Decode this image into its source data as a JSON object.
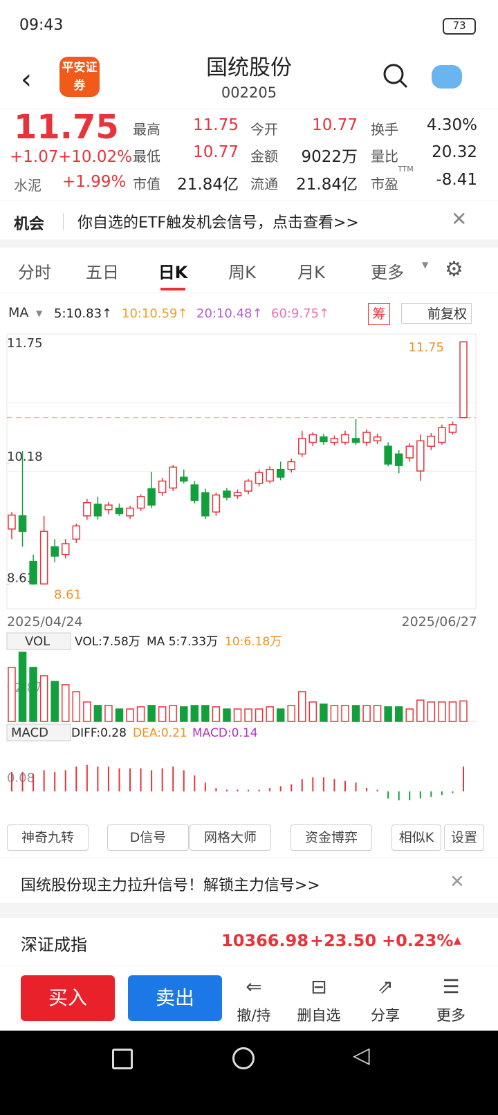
{
  "status": {
    "time": "09:43",
    "battery": "73"
  },
  "header": {
    "logo": "平安证券",
    "title": "国统股份",
    "code": "002205"
  },
  "quote": {
    "price": "11.75",
    "change": "+1.07",
    "pct": "+10.02%",
    "sector": "水泥",
    "sector_pct": "+1.99%",
    "stats": [
      [
        "最高",
        "11.75"
      ],
      [
        "今开",
        "10.77"
      ],
      [
        "换手",
        "4.30%"
      ],
      [
        "最低",
        "10.77"
      ],
      [
        "金额",
        "9022万"
      ],
      [
        "量比",
        "20.32"
      ],
      [
        "市值",
        "21.84亿"
      ],
      [
        "流通",
        "21.84亿"
      ],
      [
        "市盈",
        "-8.41"
      ]
    ],
    "ttm": "TTM"
  },
  "banner": {
    "tag": "机会",
    "text": "你自选的ETF触发机会信号，点击查看>>"
  },
  "tabs": [
    "分时",
    "五日",
    "日K",
    "周K",
    "月K",
    "更多"
  ],
  "ma_legend": {
    "label": "MA",
    "items": [
      {
        "text": "5:10.83↑",
        "color": "#222222"
      },
      {
        "text": "10:10.59↑",
        "color": "#f0a020"
      },
      {
        "text": "20:10.48↑",
        "color": "#b060d0"
      },
      {
        "text": "60:9.75↑",
        "color": "#f070b0"
      }
    ],
    "chip": "筹",
    "adjust": "前复权"
  },
  "chart_data": {
    "type": "candlestick",
    "ylim": [
      8.3,
      11.85
    ],
    "yticks": [
      {
        "value": 11.75,
        "label": "11.75"
      },
      {
        "value": 10.18,
        "label": "10.18"
      },
      {
        "value": 8.61,
        "label": "8.61"
      }
    ],
    "ref_line": 10.77,
    "high_label": "11.75",
    "low_label": "8.61",
    "up_color": "#e8333a",
    "down_color": "#12a03c",
    "candles": [
      {
        "open": 9.33,
        "high": 9.55,
        "low": 9.2,
        "close": 9.51
      },
      {
        "open": 9.5,
        "high": 10.34,
        "low": 9.1,
        "close": 9.3
      },
      {
        "open": 8.91,
        "high": 9.0,
        "low": 8.61,
        "close": 8.62
      },
      {
        "open": 8.62,
        "high": 9.5,
        "low": 8.61,
        "close": 9.3
      },
      {
        "open": 9.1,
        "high": 9.2,
        "low": 8.9,
        "close": 8.98
      },
      {
        "open": 9.0,
        "high": 9.2,
        "low": 8.95,
        "close": 9.14
      },
      {
        "open": 9.2,
        "high": 9.4,
        "low": 9.15,
        "close": 9.37
      },
      {
        "open": 9.5,
        "high": 9.72,
        "low": 9.45,
        "close": 9.67
      },
      {
        "open": 9.65,
        "high": 9.75,
        "low": 9.45,
        "close": 9.5
      },
      {
        "open": 9.58,
        "high": 9.68,
        "low": 9.52,
        "close": 9.64
      },
      {
        "open": 9.6,
        "high": 9.66,
        "low": 9.5,
        "close": 9.53
      },
      {
        "open": 9.5,
        "high": 9.63,
        "low": 9.46,
        "close": 9.6
      },
      {
        "open": 9.6,
        "high": 9.78,
        "low": 9.56,
        "close": 9.75
      },
      {
        "open": 9.85,
        "high": 10.07,
        "low": 9.6,
        "close": 9.64
      },
      {
        "open": 9.8,
        "high": 9.99,
        "low": 9.76,
        "close": 9.95
      },
      {
        "open": 9.86,
        "high": 10.16,
        "low": 9.82,
        "close": 10.13
      },
      {
        "open": 10.0,
        "high": 10.1,
        "low": 9.92,
        "close": 9.95
      },
      {
        "open": 9.9,
        "high": 9.95,
        "low": 9.66,
        "close": 9.7
      },
      {
        "open": 9.8,
        "high": 9.85,
        "low": 9.46,
        "close": 9.5
      },
      {
        "open": 9.55,
        "high": 9.8,
        "low": 9.5,
        "close": 9.77
      },
      {
        "open": 9.82,
        "high": 9.86,
        "low": 9.7,
        "close": 9.74
      },
      {
        "open": 9.76,
        "high": 9.84,
        "low": 9.72,
        "close": 9.8
      },
      {
        "open": 9.82,
        "high": 9.98,
        "low": 9.78,
        "close": 9.95
      },
      {
        "open": 9.92,
        "high": 10.1,
        "low": 9.88,
        "close": 10.06
      },
      {
        "open": 9.95,
        "high": 10.14,
        "low": 9.92,
        "close": 10.1
      },
      {
        "open": 10.1,
        "high": 10.2,
        "low": 9.96,
        "close": 10.0
      },
      {
        "open": 10.1,
        "high": 10.24,
        "low": 10.06,
        "close": 10.2
      },
      {
        "open": 10.3,
        "high": 10.6,
        "low": 10.26,
        "close": 10.5
      },
      {
        "open": 10.45,
        "high": 10.58,
        "low": 10.4,
        "close": 10.55
      },
      {
        "open": 10.52,
        "high": 10.56,
        "low": 10.42,
        "close": 10.46
      },
      {
        "open": 10.45,
        "high": 10.54,
        "low": 10.41,
        "close": 10.5
      },
      {
        "open": 10.45,
        "high": 10.6,
        "low": 10.42,
        "close": 10.55
      },
      {
        "open": 10.5,
        "high": 10.75,
        "low": 10.42,
        "close": 10.45
      },
      {
        "open": 10.45,
        "high": 10.62,
        "low": 10.4,
        "close": 10.58
      },
      {
        "open": 10.47,
        "high": 10.56,
        "low": 10.43,
        "close": 10.52
      },
      {
        "open": 10.4,
        "high": 10.45,
        "low": 10.14,
        "close": 10.17
      },
      {
        "open": 10.3,
        "high": 10.35,
        "low": 10.05,
        "close": 10.15
      },
      {
        "open": 10.25,
        "high": 10.44,
        "low": 10.2,
        "close": 10.4
      },
      {
        "open": 10.08,
        "high": 10.55,
        "low": 9.95,
        "close": 10.47
      },
      {
        "open": 10.4,
        "high": 10.57,
        "low": 10.35,
        "close": 10.53
      },
      {
        "open": 10.45,
        "high": 10.68,
        "low": 10.42,
        "close": 10.64
      },
      {
        "open": 10.58,
        "high": 10.72,
        "low": 10.55,
        "close": 10.68
      },
      {
        "open": 10.77,
        "high": 11.75,
        "low": 10.77,
        "close": 11.75
      }
    ],
    "start_date": "2025/04/24",
    "end_date": "2025/06/27",
    "volume": {
      "label": "VOL",
      "texts": [
        "VOL:7.58万",
        "MA 5:7.33万",
        "10:6.18万"
      ],
      "ylim": [
        0,
        25.6
      ],
      "yticks": [
        {
          "value": 12.8,
          "label": "12.8万"
        }
      ],
      "values": [
        20,
        25.6,
        20,
        16.9,
        14.8,
        13.6,
        11,
        7.2,
        5.9,
        5.9,
        4.6,
        4.6,
        5.4,
        5.9,
        5.4,
        5.9,
        5.4,
        5.9,
        5.9,
        5.4,
        4.6,
        4.6,
        4.6,
        4.6,
        5.4,
        4.6,
        5.9,
        11,
        7.2,
        6.4,
        5.9,
        5.9,
        5.9,
        5.9,
        5.9,
        5.4,
        5.4,
        4.6,
        7.9,
        7.2,
        7.2,
        7.2,
        7.58
      ]
    },
    "macd": {
      "label": "MACD",
      "texts": [
        "DIFF:0.28",
        "DEA:0.21",
        "MACD:0.14"
      ],
      "ylim": [
        -0.12,
        0.27
      ],
      "yticks": [
        {
          "value": 0.08,
          "label": "0.08"
        }
      ],
      "values": [
        0.11,
        0.11,
        0.1,
        0.12,
        0.11,
        0.12,
        0.14,
        0.15,
        0.14,
        0.14,
        0.13,
        0.13,
        0.13,
        0.12,
        0.13,
        0.14,
        0.12,
        0.09,
        0.05,
        0.02,
        0.01,
        0.01,
        0.01,
        0.01,
        0.02,
        0.03,
        0.04,
        0.07,
        0.08,
        0.08,
        0.07,
        0.06,
        0.05,
        0.02,
        0.01,
        -0.04,
        -0.05,
        -0.05,
        -0.04,
        -0.03,
        -0.02,
        -0.01,
        0.14
      ]
    }
  },
  "tools": {
    "items": [
      "神奇九转",
      "D信号",
      "网格大师",
      "资金博弈",
      "相似K"
    ],
    "settings": "设置"
  },
  "promo": "国统股份现主力拉升信号！解锁主力信号>>",
  "index": {
    "name": "深证成指",
    "value": "10366.98",
    "change": "+23.50",
    "pct": "+0.23%"
  },
  "bottom": {
    "buy": "买入",
    "sell": "卖出",
    "actions": [
      "撤/持",
      "删自选",
      "分享",
      "更多"
    ]
  }
}
